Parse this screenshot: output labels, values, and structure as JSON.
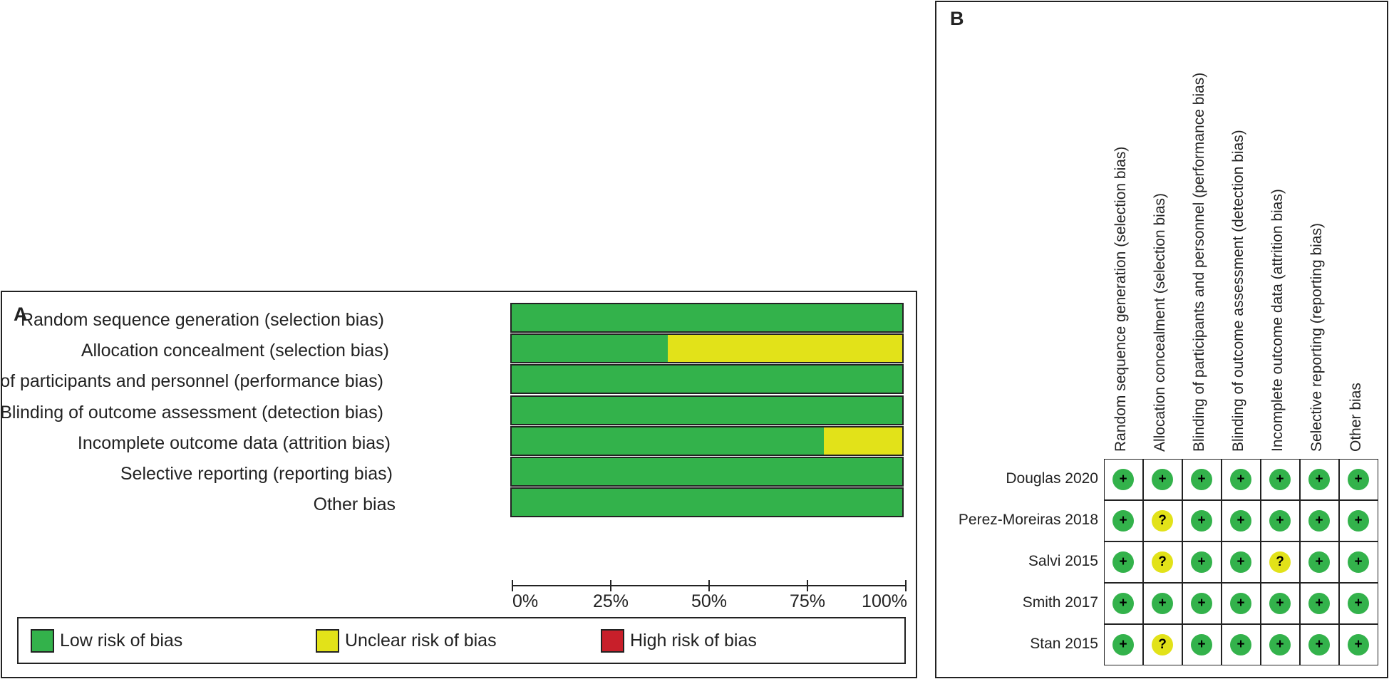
{
  "colors": {
    "low": "#33b24b",
    "unclear": "#e2e219",
    "high": "#c81f2a"
  },
  "panel_a": {
    "letter": "A",
    "legend": [
      {
        "label": "Low risk of bias",
        "key": "low"
      },
      {
        "label": "Unclear risk of bias",
        "key": "unclear"
      },
      {
        "label": "High risk of bias",
        "key": "high"
      }
    ]
  },
  "panel_b": {
    "letter": "B",
    "symbols": {
      "low": "+",
      "unclear": "?"
    }
  },
  "chart_data": [
    {
      "type": "bar",
      "orientation": "horizontal-stacked",
      "title": "",
      "categories": [
        "Random sequence generation (selection bias)",
        "Allocation concealment (selection bias)",
        "Blinding of participants and personnel (performance bias)",
        "Blinding of outcome assessment (detection bias)",
        "Incomplete outcome data (attrition bias)",
        "Selective reporting (reporting bias)",
        "Other bias"
      ],
      "series": [
        {
          "name": "Low risk of bias",
          "values": [
            100,
            40,
            100,
            100,
            80,
            100,
            100
          ]
        },
        {
          "name": "Unclear risk of bias",
          "values": [
            0,
            60,
            0,
            0,
            20,
            0,
            0
          ]
        },
        {
          "name": "High risk of bias",
          "values": [
            0,
            0,
            0,
            0,
            0,
            0,
            0
          ]
        }
      ],
      "xlim": [
        0,
        100
      ],
      "x_ticks": [
        "0%",
        "25%",
        "50%",
        "75%",
        "100%"
      ],
      "legend_position": "bottom"
    },
    {
      "type": "table",
      "columns": [
        "Random sequence generation (selection bias)",
        "Allocation concealment (selection bias)",
        "Blinding of participants and personnel (performance bias)",
        "Blinding of outcome assessment (detection bias)",
        "Incomplete outcome data (attrition bias)",
        "Selective reporting (reporting bias)",
        "Other bias"
      ],
      "rows": [
        {
          "study": "Douglas 2020",
          "judgements": [
            "low",
            "low",
            "low",
            "low",
            "low",
            "low",
            "low"
          ]
        },
        {
          "study": "Perez-Moreiras 2018",
          "judgements": [
            "low",
            "unclear",
            "low",
            "low",
            "low",
            "low",
            "low"
          ]
        },
        {
          "study": "Salvi 2015",
          "judgements": [
            "low",
            "unclear",
            "low",
            "low",
            "unclear",
            "low",
            "low"
          ]
        },
        {
          "study": "Smith 2017",
          "judgements": [
            "low",
            "low",
            "low",
            "low",
            "low",
            "low",
            "low"
          ]
        },
        {
          "study": "Stan 2015",
          "judgements": [
            "low",
            "unclear",
            "low",
            "low",
            "low",
            "low",
            "low"
          ]
        }
      ]
    }
  ]
}
